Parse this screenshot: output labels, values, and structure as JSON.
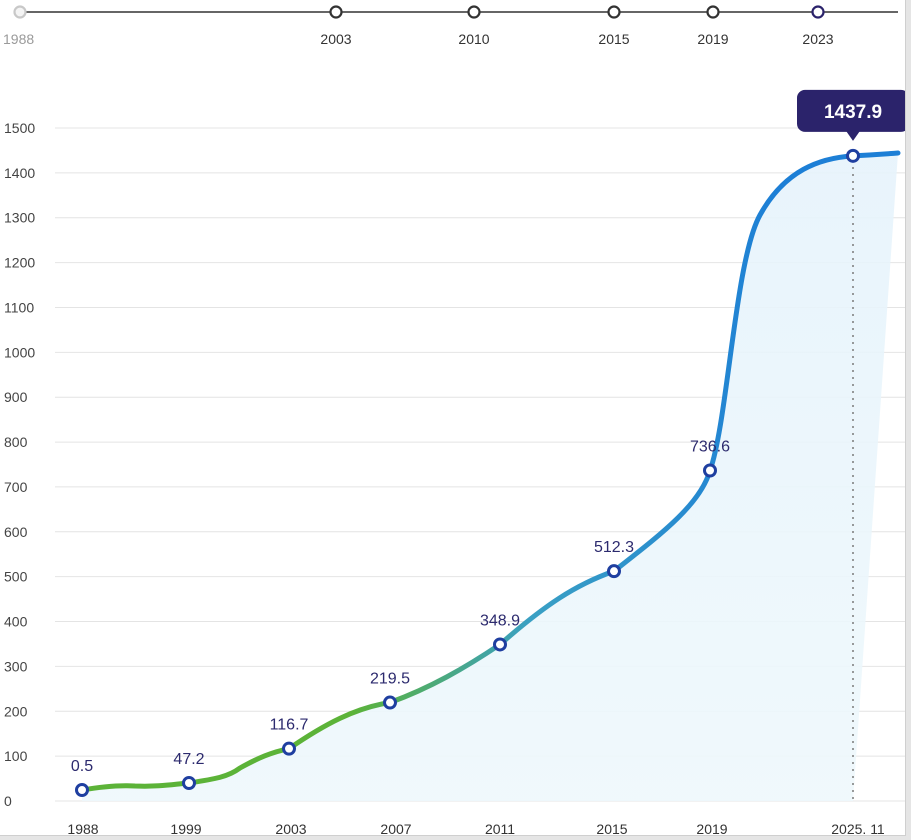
{
  "timeline": {
    "items": [
      {
        "label": "1988",
        "state": "faded"
      },
      {
        "label": "2003",
        "state": "normal"
      },
      {
        "label": "2010",
        "state": "normal"
      },
      {
        "label": "2015",
        "state": "normal"
      },
      {
        "label": "2019",
        "state": "normal"
      },
      {
        "label": "2023",
        "state": "active"
      }
    ]
  },
  "chart_data": {
    "type": "line",
    "x_tick_labels": [
      "1988",
      "1999",
      "2003",
      "2007",
      "2011",
      "2015",
      "2019",
      "2025. 11"
    ],
    "ylim": [
      0,
      1500
    ],
    "y_ticks": [
      0,
      100,
      200,
      300,
      400,
      500,
      600,
      700,
      800,
      900,
      1000,
      1100,
      1200,
      1300,
      1400,
      1500
    ],
    "grid": true,
    "series": [
      {
        "points": [
          {
            "x": "1988",
            "value": 0.5,
            "label": "0.5"
          },
          {
            "x": "1999",
            "value": 47.2,
            "label": "47.2"
          },
          {
            "x": "2003",
            "value": 116.7,
            "label": "116.7"
          },
          {
            "x": "2007",
            "value": 219.5,
            "label": "219.5"
          },
          {
            "x": "2011",
            "value": 348.9,
            "label": "348.9"
          },
          {
            "x": "2015",
            "value": 512.3,
            "label": "512.3"
          },
          {
            "x": "2019",
            "value": 736.6,
            "label": "736.6"
          },
          {
            "x": "2025. 11",
            "value": 1437.9,
            "label": "1437.9"
          }
        ]
      }
    ],
    "highlight": {
      "x": "2025. 11",
      "value": 1437.9,
      "label": "1437.9"
    },
    "colors": {
      "line_start": "#5cb338",
      "line_mid": "#3aa0c4",
      "line_end": "#1d7fd6",
      "marker_stroke": "#1f3fa0",
      "label_text": "#2c2a6e",
      "callout_bg": "#2b236b"
    }
  }
}
